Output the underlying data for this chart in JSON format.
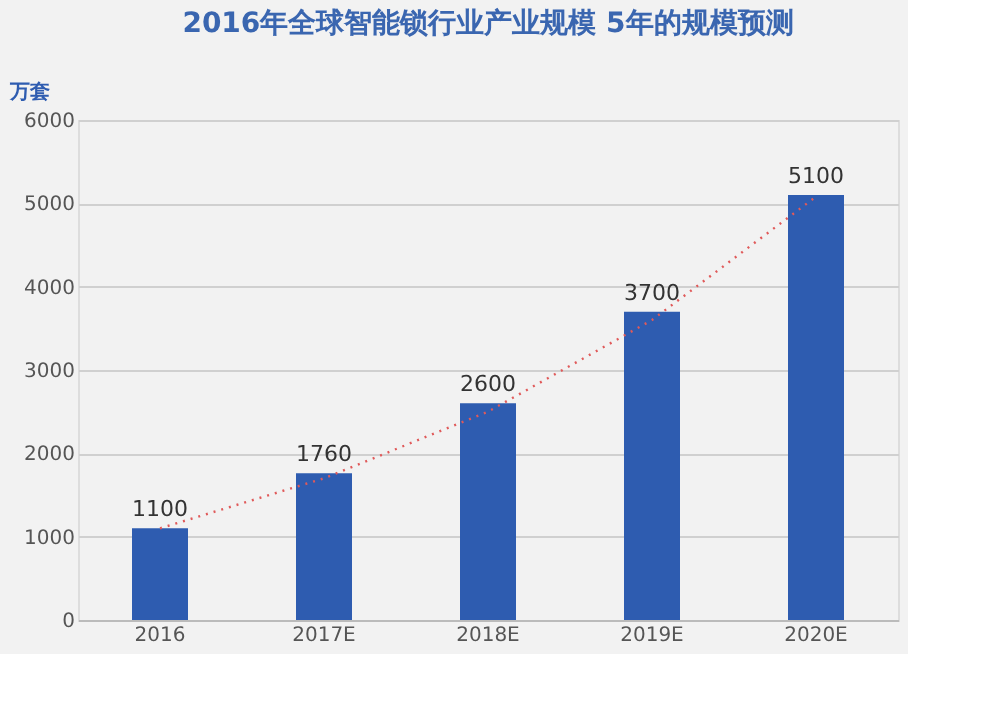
{
  "chart_data": {
    "type": "bar",
    "title": "2016年全球智能锁行业产业规模    5年的规模预测",
    "ylabel": "万套",
    "categories": [
      "2016",
      "2017E",
      "2018E",
      "2019E",
      "2020E"
    ],
    "series": [
      {
        "color": "#2e5cb0",
        "values": [
          1100,
          1760,
          2600,
          3700,
          5100
        ],
        "value_labels": [
          "1100",
          "1760",
          "2600",
          "3700",
          "5100"
        ]
      },
      {
        "type": "line",
        "color": "#e05a5a",
        "line_style": "dotted",
        "marker": "none",
        "values": [
          1100,
          1700,
          2500,
          3600,
          5080
        ]
      }
    ],
    "ylim": [
      0,
      6000
    ],
    "yticks": [
      0,
      1000,
      2000,
      3000,
      4000,
      5000,
      6000
    ],
    "grid": "y"
  }
}
